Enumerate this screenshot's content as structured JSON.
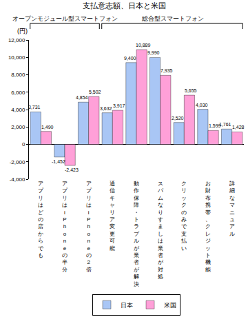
{
  "chart_data": {
    "type": "bar",
    "title": "支払意志額、日本と米国",
    "y_label": "(円)",
    "categories": [
      "アプリはどの店からでも",
      "アプリはiPhoneの半分",
      "アプリはiPhoneの2倍",
      "通信キャリア変更可能",
      "動作保障・トラブルが業者が解決",
      "スパムなりすましは業者が対処",
      "クリックのみで支払い",
      "お財布携帯、クレジット機能",
      "詳細なマニュアル"
    ],
    "series": [
      {
        "name": "日本",
        "color": "#a9c6f5",
        "values": [
          3731,
          -1452,
          4854,
          3632,
          9400,
          9990,
          2520,
          4030,
          1761
        ],
        "value_labels": [
          "3,731",
          "-1,452",
          "4,854",
          "3,632",
          "9,400",
          "9,990",
          "2,520",
          "4,030",
          "1,761"
        ]
      },
      {
        "name": "米国",
        "color": "#ffa0d8",
        "values": [
          1490,
          -2423,
          5502,
          3917,
          10889,
          7935,
          5655,
          1599,
          1428
        ],
        "value_labels": [
          "1,490",
          "-2,423",
          "5,502",
          "3,917",
          "10,889",
          "7,935",
          "5,655",
          "1,599",
          "1,428"
        ]
      }
    ],
    "groups": [
      {
        "label": "オープンモジュール型スマートフォン",
        "categories": [
          "アプリはどの店からでも",
          "アプリはiPhoneの半分",
          "アプリはiPhoneの2倍"
        ]
      },
      {
        "label": "総合型スマートフォン",
        "categories": [
          "通信キャリア変更可能",
          "動作保障・トラブルが業者が解決",
          "スパムなりすましは業者が対処",
          "クリックのみで支払い",
          "お財布携帯、クレジット機能",
          "詳細なマニュアル"
        ]
      }
    ],
    "ylim": [
      -4000,
      12000
    ],
    "yticks": [
      {
        "value": -4000,
        "label": "-4,000"
      },
      {
        "value": -2000,
        "label": "-2,000"
      },
      0,
      {
        "value": 2000,
        "label": "2,000"
      },
      {
        "value": 4000,
        "label": "4,000"
      },
      {
        "value": 6000,
        "label": "6,000"
      },
      {
        "value": 8000,
        "label": "8,000"
      },
      {
        "value": 10000,
        "label": "10,000"
      },
      {
        "value": 12000,
        "label": "12,000"
      }
    ],
    "grid": false,
    "legend": "bottom",
    "data_labels": true
  }
}
